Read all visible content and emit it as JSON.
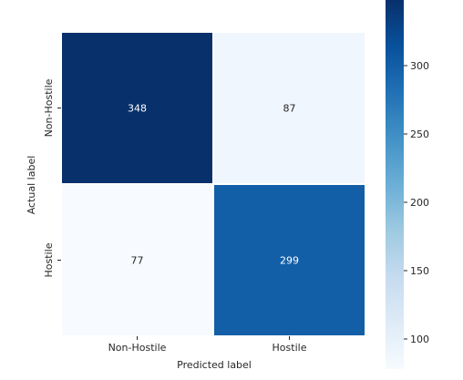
{
  "chart_data": {
    "type": "heatmap",
    "title": "",
    "xlabel": "Predicted label",
    "ylabel": "Actual label",
    "x_categories": [
      "Non-Hostile",
      "Hostile"
    ],
    "y_categories": [
      "Non-Hostile",
      "Hostile"
    ],
    "values": [
      [
        348,
        87
      ],
      [
        77,
        299
      ]
    ],
    "colormap": "Blues",
    "color_range": [
      77,
      348
    ],
    "colorbar_ticks": [
      100,
      150,
      200,
      250,
      300
    ],
    "cell_text_colors": {
      "dark": "#ffffff",
      "light": "#262626"
    },
    "grid": false,
    "legend": "colorbar-right"
  }
}
